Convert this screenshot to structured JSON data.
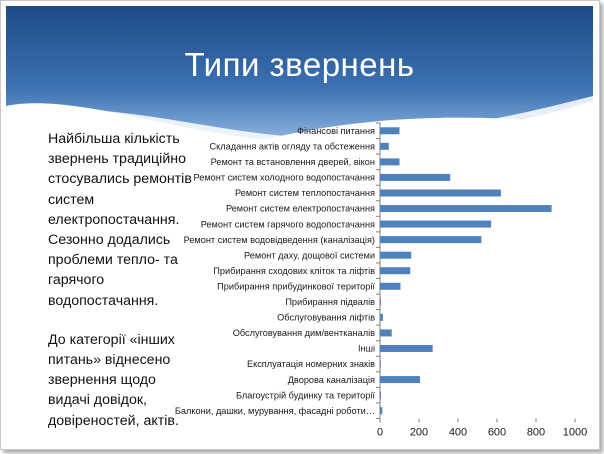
{
  "slide": {
    "title": "Типи звернень",
    "paragraph1": "Найбільша кількість звернень традиційно стосувались ремонтів систем електропостачання. Сезонно додались проблеми тепло- та гарячого водопостачання.",
    "paragraph2": "До категорії «інших питань» віднесено звернення щодо видачі довідок, довіреностей, актів."
  },
  "colors": {
    "bar": "#4f81bd",
    "header_dark": "#1f4e8c",
    "header_light": "#9dc0e6"
  },
  "chart_data": {
    "type": "bar",
    "orientation": "horizontal",
    "categories": [
      "Фінансові питання",
      "Складання актів огляду та обстеження",
      "Ремонт та встановлення дверей, вікон",
      "Ремонт систем холодного водопостачання",
      "Ремонт систем теплопостачання",
      "Ремонт систем електропостачання",
      "Ремонт систем гарячого водопостачання",
      "Ремонт систем водовідведення (каналізація)",
      "Ремонт даху, дощової системи",
      "Прибирання сходових кліток та ліфтів",
      "Прибирання прибудинкової території",
      "Прибирання підвалів",
      "Обслуговування ліфтів",
      "Обслуговування дим/вентканалів",
      "Інші",
      "Експлуатація номерних знаків",
      "Дворова каналізація",
      "Благоустрій будинку та території",
      "Балкони, дашки, мурування, фасадні роботи…"
    ],
    "values": [
      100,
      45,
      100,
      360,
      620,
      880,
      570,
      520,
      160,
      155,
      105,
      5,
      15,
      60,
      270,
      3,
      205,
      5,
      12
    ],
    "xlim": [
      0,
      1000
    ],
    "xticks": [
      "0",
      "200",
      "400",
      "600",
      "800",
      "1000"
    ],
    "grid": false,
    "legend": "none"
  }
}
